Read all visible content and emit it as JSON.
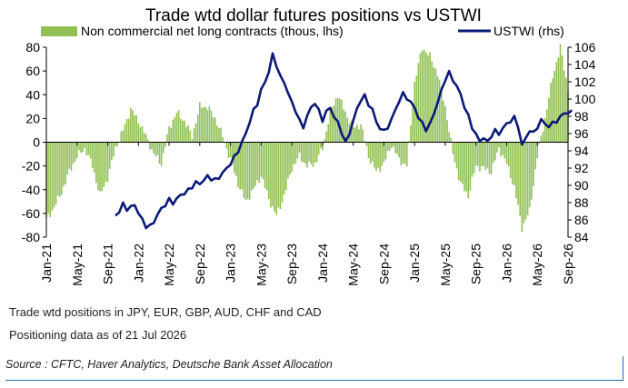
{
  "chart_data": {
    "type": "bar+line",
    "title": "Trade wtd dollar futures positions  vs USTWI",
    "legend": [
      {
        "label": "Non commercial net long contracts (thous, lhs)",
        "color": "#92c055",
        "kind": "bar"
      },
      {
        "label": "USTWI (rhs)",
        "color": "#0c1a78",
        "kind": "line"
      }
    ],
    "legend_placement": "top",
    "grid": false,
    "x_ticks": [
      "Jan-21",
      "May-21",
      "Sep-21",
      "Jan-22",
      "May-22",
      "Sep-22",
      "Jan-23",
      "May-23",
      "Sep-23",
      "Jan-24",
      "May-24",
      "Sep-24",
      "Jan-25",
      "May-25",
      "Sep-25",
      "Jan-26",
      "May-26",
      "Sep-26"
    ],
    "x_range": [
      "Jan-21",
      "Sep-26"
    ],
    "ylim_left": [
      -80,
      80
    ],
    "yticks_left": [
      -80,
      -60,
      -40,
      -20,
      0,
      20,
      40,
      60,
      80
    ],
    "ylim_right": [
      84,
      106
    ],
    "yticks_right": [
      84,
      86,
      88,
      90,
      92,
      94,
      96,
      98,
      100,
      102,
      104,
      106
    ],
    "positions_month_index_start": "Jan-21",
    "positions": [
      [
        0,
        -65
      ],
      [
        1,
        -55
      ],
      [
        2,
        -42
      ],
      [
        3,
        -25
      ],
      [
        4,
        -12
      ],
      [
        5,
        -5
      ],
      [
        6,
        -20
      ],
      [
        7,
        -45
      ],
      [
        8,
        -30
      ],
      [
        9,
        -5
      ],
      [
        10,
        10
      ],
      [
        11,
        28
      ],
      [
        12,
        18
      ],
      [
        13,
        5
      ],
      [
        14,
        -10
      ],
      [
        15,
        -18
      ],
      [
        16,
        12
      ],
      [
        17,
        25
      ],
      [
        18,
        18
      ],
      [
        19,
        5
      ],
      [
        20,
        30
      ],
      [
        21,
        30
      ],
      [
        22,
        20
      ],
      [
        23,
        5
      ],
      [
        24,
        -15
      ],
      [
        25,
        -35
      ],
      [
        26,
        -50
      ],
      [
        27,
        -40
      ],
      [
        28,
        -28
      ],
      [
        29,
        -48
      ],
      [
        30,
        -62
      ],
      [
        31,
        -45
      ],
      [
        32,
        -22
      ],
      [
        33,
        -12
      ],
      [
        34,
        -20
      ],
      [
        35,
        -18
      ],
      [
        36,
        -5
      ],
      [
        37,
        25
      ],
      [
        38,
        40
      ],
      [
        39,
        25
      ],
      [
        40,
        12
      ],
      [
        41,
        15
      ],
      [
        42,
        -12
      ],
      [
        43,
        -25
      ],
      [
        44,
        -18
      ],
      [
        45,
        -2
      ],
      [
        46,
        -15
      ],
      [
        47,
        -20
      ],
      [
        48,
        50
      ],
      [
        49,
        80
      ],
      [
        50,
        72
      ],
      [
        51,
        58
      ],
      [
        52,
        30
      ],
      [
        53,
        -10
      ],
      [
        54,
        -35
      ],
      [
        55,
        -45
      ],
      [
        56,
        -20
      ],
      [
        57,
        -22
      ],
      [
        58,
        -25
      ],
      [
        59,
        -5
      ],
      [
        60,
        -18
      ],
      [
        61,
        -38
      ],
      [
        62,
        -72
      ],
      [
        63,
        -58
      ],
      [
        64,
        -12
      ],
      [
        65,
        20
      ],
      [
        66,
        55
      ],
      [
        67,
        80
      ],
      [
        68,
        45
      ]
    ],
    "ustwi": [
      [
        0,
        86.5
      ],
      [
        0.5,
        87.0
      ],
      [
        1,
        87.8
      ],
      [
        1.5,
        87.3
      ],
      [
        2,
        87.4
      ],
      [
        2.5,
        87.8
      ],
      [
        3,
        86.8
      ],
      [
        3.5,
        86.0
      ],
      [
        4,
        85.3
      ],
      [
        4.5,
        85.2
      ],
      [
        5,
        85.8
      ],
      [
        5.5,
        86.6
      ],
      [
        6,
        87.3
      ],
      [
        6.5,
        87.8
      ],
      [
        7,
        88.3
      ],
      [
        7.5,
        88.0
      ],
      [
        8,
        88.4
      ],
      [
        8.5,
        88.9
      ],
      [
        9,
        89.1
      ],
      [
        9.5,
        89.4
      ],
      [
        10,
        89.9
      ],
      [
        10.5,
        90.3
      ],
      [
        11,
        90.2
      ],
      [
        11.5,
        90.6
      ],
      [
        12,
        91.0
      ],
      [
        12.5,
        90.8
      ],
      [
        13,
        90.6
      ],
      [
        13.5,
        90.9
      ],
      [
        14,
        91.5
      ],
      [
        14.5,
        91.9
      ],
      [
        15,
        92.6
      ],
      [
        15.5,
        93.2
      ],
      [
        16,
        94.0
      ],
      [
        16.5,
        95.0
      ],
      [
        17,
        96.0
      ],
      [
        17.5,
        97.4
      ],
      [
        18,
        98.6
      ],
      [
        18.5,
        99.5
      ],
      [
        19,
        101.0
      ],
      [
        19.5,
        102.0
      ],
      [
        20,
        103.2
      ],
      [
        20.5,
        105.1
      ],
      [
        21,
        104.0
      ],
      [
        21.5,
        102.5
      ],
      [
        22,
        102.0
      ],
      [
        22.5,
        100.7
      ],
      [
        23,
        99.6
      ],
      [
        23.5,
        98.7
      ],
      [
        24,
        97.4
      ],
      [
        24.5,
        96.8
      ],
      [
        25,
        98.0
      ],
      [
        25.5,
        99.0
      ],
      [
        26,
        99.6
      ],
      [
        26.5,
        98.6
      ],
      [
        27,
        97.6
      ],
      [
        27.5,
        98.5
      ],
      [
        28,
        99.0
      ],
      [
        28.5,
        98.0
      ],
      [
        29,
        97.2
      ],
      [
        29.5,
        96.2
      ],
      [
        30,
        94.9
      ],
      [
        30.5,
        96.0
      ],
      [
        31,
        97.5
      ],
      [
        31.5,
        98.8
      ],
      [
        32,
        100.0
      ],
      [
        32.5,
        100.3
      ],
      [
        33,
        99.4
      ],
      [
        33.5,
        98.8
      ],
      [
        34,
        97.3
      ],
      [
        34.5,
        96.7
      ],
      [
        35,
        96.2
      ],
      [
        35.5,
        96.8
      ],
      [
        36,
        97.6
      ],
      [
        36.5,
        98.8
      ],
      [
        37,
        99.8
      ],
      [
        37.5,
        100.6
      ],
      [
        38,
        100.2
      ],
      [
        38.5,
        99.5
      ],
      [
        39,
        99.1
      ],
      [
        39.5,
        97.8
      ],
      [
        40,
        97.2
      ],
      [
        40.5,
        96.5
      ],
      [
        41,
        97.0
      ],
      [
        41.5,
        98.4
      ],
      [
        42,
        99.5
      ],
      [
        42.5,
        101.0
      ],
      [
        43,
        102.3
      ],
      [
        43.5,
        103.0
      ],
      [
        44,
        102.3
      ],
      [
        44.5,
        101.4
      ],
      [
        45,
        100.6
      ],
      [
        45.5,
        99.1
      ],
      [
        46,
        98.0
      ],
      [
        46.5,
        96.8
      ],
      [
        47,
        95.8
      ],
      [
        47.5,
        95.2
      ],
      [
        48,
        95.5
      ],
      [
        48.5,
        95.0
      ],
      [
        49,
        95.8
      ],
      [
        49.5,
        96.3
      ],
      [
        50,
        96.0
      ],
      [
        50.5,
        96.6
      ],
      [
        51,
        97.1
      ],
      [
        51.5,
        97.5
      ],
      [
        52,
        97.8
      ],
      [
        52.5,
        96.9
      ],
      [
        53,
        94.6
      ],
      [
        53.5,
        95.5
      ],
      [
        54,
        96.4
      ],
      [
        54.5,
        96.0
      ],
      [
        55,
        96.8
      ],
      [
        55.5,
        97.5
      ],
      [
        56,
        97.2
      ],
      [
        56.5,
        96.8
      ],
      [
        57,
        97.2
      ],
      [
        57.5,
        97.5
      ],
      [
        58,
        97.8
      ],
      [
        58.5,
        98.5
      ],
      [
        59,
        98.3
      ],
      [
        59.5,
        98.6
      ]
    ],
    "ustwi_month_offset": 9,
    "notes": [
      "Trade wtd positions in JPY, EUR, GBP, AUD, CHF and CAD",
      "Positioning data as of 21 Jul 2026"
    ],
    "source": "Source : CFTC, Haver Analytics, Deutsche Bank Asset Allocation"
  }
}
